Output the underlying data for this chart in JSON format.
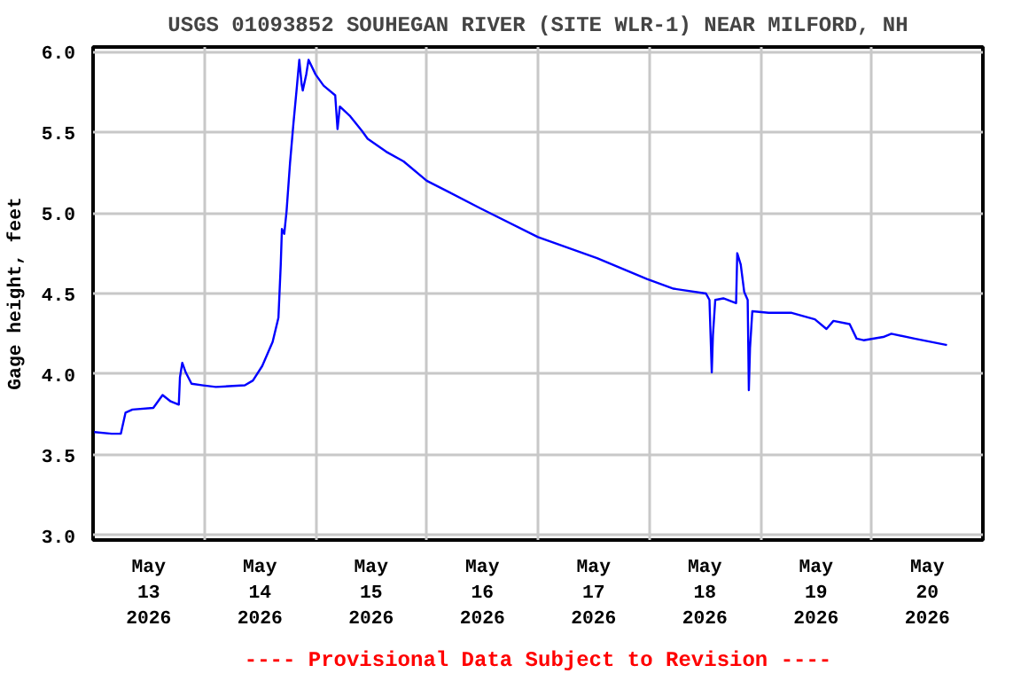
{
  "chart_data": {
    "type": "line",
    "title": "USGS 01093852 SOUHEGAN RIVER (SITE WLR-1) NEAR MILFORD, NH",
    "ylabel": "Gage height, feet",
    "annotations": [
      "---- Provisional Data Subject to Revision ----"
    ],
    "xlim": [
      "2026-05-13",
      "2026-05-21"
    ],
    "xticks": [
      {
        "value": "2026-05-13T12:00",
        "label": "May\n13\n2026"
      },
      {
        "value": "2026-05-14",
        "label": null
      },
      {
        "value": "2026-05-14T12:00",
        "label": "May\n14\n2026"
      },
      {
        "value": "2026-05-15",
        "label": null
      },
      {
        "value": "2026-05-15T12:00",
        "label": "May\n15\n2026"
      },
      {
        "value": "2026-05-16",
        "label": null
      },
      {
        "value": "2026-05-16T12:00",
        "label": "May\n16\n2026"
      },
      {
        "value": "2026-05-17",
        "label": null
      },
      {
        "value": "2026-05-17T12:00",
        "label": "May\n17\n2026"
      },
      {
        "value": "2026-05-18",
        "label": null
      },
      {
        "value": "2026-05-18T12:00",
        "label": "May\n18\n2026"
      },
      {
        "value": "2026-05-19",
        "label": null
      },
      {
        "value": "2026-05-19T12:00",
        "label": "May\n19\n2026"
      },
      {
        "value": "2026-05-20",
        "label": null
      },
      {
        "value": "2026-05-20T12:00",
        "label": "May\n20\n2026"
      }
    ],
    "ylim": [
      2.97,
      6.03
    ],
    "yticks": [
      {
        "value": 3.0,
        "label": "3.0"
      },
      {
        "value": 3.5,
        "label": "3.5"
      },
      {
        "value": 4.0,
        "label": "4.0"
      },
      {
        "value": 4.5,
        "label": "4.5"
      },
      {
        "value": 5.0,
        "label": "5.0"
      },
      {
        "value": 5.5,
        "label": "5.5"
      },
      {
        "value": 6.0,
        "label": "6.0"
      }
    ],
    "grid": true,
    "marker": "none",
    "line_style": "solid",
    "series": [
      {
        "color": "#0000ff",
        "x": [
          "2026-05-13T00:15",
          "2026-05-13T04:00",
          "2026-05-13T06:00",
          "2026-05-13T07:00",
          "2026-05-13T08:30",
          "2026-05-13T13:00",
          "2026-05-13T15:00",
          "2026-05-13T16:45",
          "2026-05-13T18:30",
          "2026-05-13T18:45",
          "2026-05-13T19:15",
          "2026-05-13T20:00",
          "2026-05-13T21:15",
          "2026-05-13T23:45",
          "2026-05-14T02:30",
          "2026-05-14T08:45",
          "2026-05-14T10:30",
          "2026-05-14T12:30",
          "2026-05-14T14:45",
          "2026-05-14T16:00",
          "2026-05-14T16:30",
          "2026-05-14T16:45",
          "2026-05-14T17:15",
          "2026-05-14T17:45",
          "2026-05-14T18:30",
          "2026-05-14T19:15",
          "2026-05-14T20:00",
          "2026-05-14T20:30",
          "2026-05-14T21:00",
          "2026-05-14T21:15",
          "2026-05-14T22:00",
          "2026-05-14T22:30",
          "2026-05-15T00:00",
          "2026-05-15T01:45",
          "2026-05-15T04:15",
          "2026-05-15T04:45",
          "2026-05-15T05:15",
          "2026-05-15T07:30",
          "2026-05-15T10:00",
          "2026-05-15T11:15",
          "2026-05-15T15:15",
          "2026-05-15T19:00",
          "2026-05-16T00:00",
          "2026-05-16T11:30",
          "2026-05-17T00:00",
          "2026-05-17T12:45",
          "2026-05-17T23:30",
          "2026-05-18T05:15",
          "2026-05-18T12:15",
          "2026-05-18T13:00",
          "2026-05-18T13:30",
          "2026-05-18T13:45",
          "2026-05-18T14:15",
          "2026-05-18T16:00",
          "2026-05-18T18:45",
          "2026-05-18T19:00",
          "2026-05-18T19:45",
          "2026-05-18T20:30",
          "2026-05-18T21:15",
          "2026-05-18T21:30",
          "2026-05-18T21:45",
          "2026-05-18T22:15",
          "2026-05-19T01:45",
          "2026-05-19T06:45",
          "2026-05-19T11:45",
          "2026-05-19T14:15",
          "2026-05-19T15:45",
          "2026-05-19T19:15",
          "2026-05-19T20:45",
          "2026-05-19T22:15",
          "2026-05-20T02:30",
          "2026-05-20T04:15",
          "2026-05-20T09:15",
          "2026-05-20T16:15"
        ],
        "values": [
          3.64,
          3.63,
          3.63,
          3.76,
          3.78,
          3.79,
          3.87,
          3.83,
          3.81,
          3.98,
          4.07,
          4.01,
          3.94,
          3.93,
          3.92,
          3.93,
          3.96,
          4.05,
          4.2,
          4.35,
          4.68,
          4.9,
          4.87,
          5.01,
          5.31,
          5.56,
          5.79,
          5.95,
          5.8,
          5.76,
          5.86,
          5.95,
          5.86,
          5.79,
          5.73,
          5.52,
          5.66,
          5.6,
          5.51,
          5.46,
          5.38,
          5.32,
          5.2,
          5.03,
          4.85,
          4.72,
          4.59,
          4.53,
          4.5,
          4.46,
          4.01,
          4.24,
          4.46,
          4.47,
          4.44,
          4.75,
          4.68,
          4.51,
          4.46,
          3.9,
          4.16,
          4.39,
          4.38,
          4.38,
          4.34,
          4.28,
          4.33,
          4.31,
          4.22,
          4.21,
          4.23,
          4.25,
          4.22,
          4.18
        ]
      }
    ]
  }
}
